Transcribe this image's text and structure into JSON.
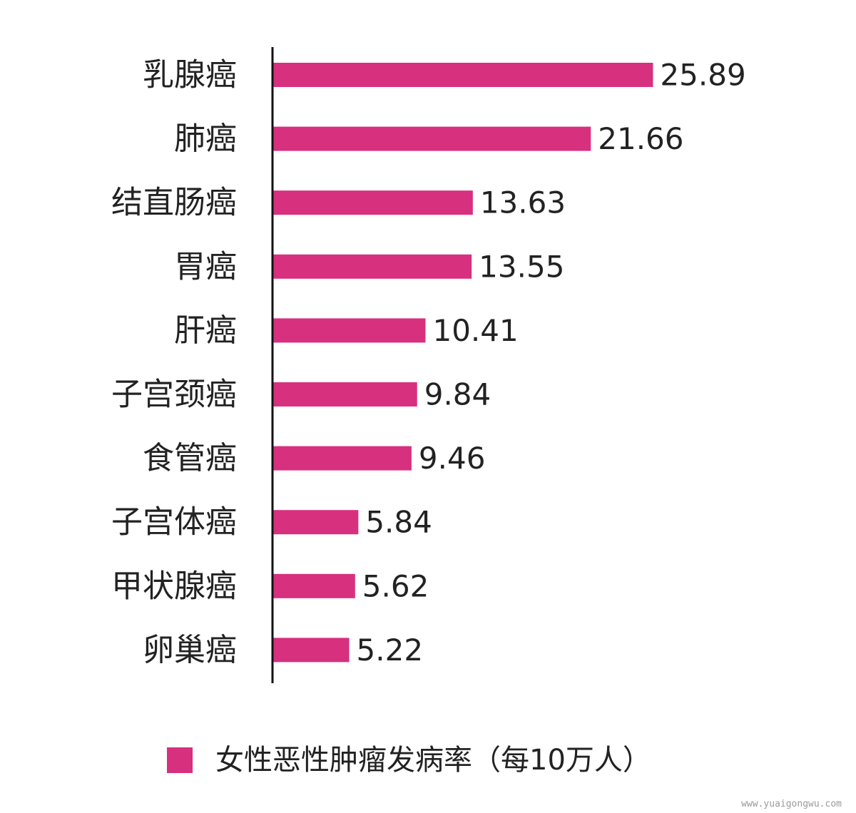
{
  "chart_data": {
    "type": "bar",
    "orientation": "horizontal",
    "categories": [
      "乳腺癌",
      "肺癌",
      "结直肠癌",
      "胃癌",
      "肝癌",
      "子宫颈癌",
      "食管癌",
      "子宫体癌",
      "甲状腺癌",
      "卵巢癌"
    ],
    "series": [
      {
        "name": "女性恶性肿瘤发病率（每10万人）",
        "values": [
          25.89,
          21.66,
          13.63,
          13.55,
          10.41,
          9.84,
          9.46,
          5.84,
          5.62,
          5.22
        ],
        "value_labels": [
          "25.89",
          "21.66",
          "13.63",
          "13.55",
          "10.41",
          "9.84",
          "9.46",
          "5.84",
          "5.62",
          "5.22"
        ]
      }
    ],
    "xlim": [
      0,
      26.5
    ],
    "grid": false,
    "legend_position": "bottom",
    "bar_color": "#d6307f"
  },
  "watermark": "www.yuaigongwu.com"
}
